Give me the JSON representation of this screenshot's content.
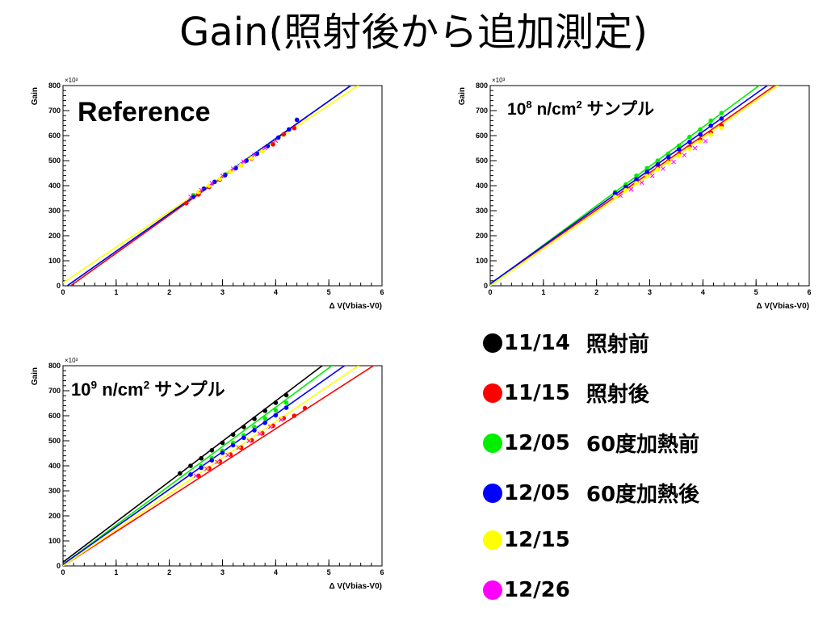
{
  "title": "Gain(照射後から追加測定)",
  "legend": [
    {
      "date": "11/14",
      "label": "照射前",
      "color": "#000000"
    },
    {
      "date": "11/15",
      "label": "照射後",
      "color": "#ff0000"
    },
    {
      "date": "12/05",
      "label": "60度加熱前",
      "color": "#00ee00"
    },
    {
      "date": "12/05",
      "label": "60度加熱後",
      "color": "#0000ff"
    },
    {
      "date": "12/15",
      "label": "",
      "color": "#ffff00"
    },
    {
      "date": "12/26",
      "label": "",
      "color": "#ff00ff"
    }
  ],
  "chart_data": [
    {
      "type": "scatter",
      "title": "",
      "annotation": "Reference",
      "xlabel": "Δ V(Vbias-V0)",
      "ylabel": "Gain",
      "y_multiplier_label": "×10³",
      "xlim": [
        0,
        6
      ],
      "ylim": [
        0,
        800
      ],
      "xticks": [
        0,
        1,
        2,
        3,
        4,
        5,
        6
      ],
      "yticks": [
        0,
        100,
        200,
        300,
        400,
        500,
        600,
        700,
        800
      ],
      "series": [
        {
          "color": "#000000",
          "x": [],
          "y": [],
          "fit": null
        },
        {
          "color": "#ff0000",
          "x": [
            2.32,
            2.55,
            2.75,
            2.95,
            3.15,
            3.35,
            3.55,
            3.75,
            3.95,
            4.15,
            4.35
          ],
          "y": [
            330,
            365,
            395,
            425,
            455,
            482,
            508,
            538,
            565,
            605,
            630
          ],
          "fit": {
            "slope": 152,
            "intercept": -22
          }
        },
        {
          "color": "#00ee00",
          "x": [
            2.45,
            2.65,
            2.85,
            3.05,
            3.25,
            3.45,
            3.65,
            3.85
          ],
          "y": [
            362,
            388,
            415,
            445,
            472,
            500,
            530,
            560
          ],
          "fit": {
            "slope": 150,
            "intercept": -12
          }
        },
        {
          "color": "#0000ff",
          "x": [
            2.45,
            2.65,
            2.85,
            3.05,
            3.25,
            3.45,
            3.65,
            3.85,
            4.05,
            4.25,
            4.4
          ],
          "y": [
            355,
            388,
            415,
            442,
            470,
            500,
            528,
            558,
            592,
            625,
            663
          ],
          "fit": {
            "slope": 150,
            "intercept": -12
          }
        },
        {
          "color": "#ffff00",
          "x": [
            2.55,
            2.75,
            2.95,
            3.15,
            3.35,
            3.55,
            3.75
          ],
          "y": [
            375,
            400,
            428,
            455,
            482,
            510,
            538
          ],
          "fit": {
            "slope": 142,
            "intercept": 12
          }
        },
        {
          "color": "#ff00ff",
          "x": [
            2.4,
            2.6,
            2.8,
            3.0,
            3.2,
            3.4,
            3.6,
            3.8,
            4.0
          ],
          "y": [
            355,
            382,
            410,
            440,
            468,
            496,
            523,
            550,
            580
          ],
          "fit": null
        }
      ]
    },
    {
      "type": "scatter",
      "title": "",
      "annotation": "10⁸ n/cm² サンプル",
      "xlabel": "Δ V(Vbias-V0)",
      "ylabel": "Gain",
      "y_multiplier_label": "×10³",
      "xlim": [
        0,
        6
      ],
      "ylim": [
        0,
        800
      ],
      "xticks": [
        0,
        1,
        2,
        3,
        4,
        5,
        6
      ],
      "yticks": [
        0,
        100,
        200,
        300,
        400,
        500,
        600,
        700,
        800
      ],
      "series": [
        {
          "color": "#000000",
          "x": [],
          "y": [],
          "fit": null
        },
        {
          "color": "#ff0000",
          "x": [
            2.35,
            2.55,
            2.75,
            2.95,
            3.15,
            3.35,
            3.55,
            3.75,
            3.95,
            4.15,
            4.35
          ],
          "y": [
            362,
            388,
            415,
            442,
            470,
            498,
            527,
            555,
            583,
            612,
            640
          ],
          "fit": {
            "slope": 148,
            "intercept": 8
          }
        },
        {
          "color": "#00ee00",
          "x": [
            2.35,
            2.55,
            2.75,
            2.95,
            3.15,
            3.35,
            3.55,
            3.75,
            3.95,
            4.15,
            4.35
          ],
          "y": [
            375,
            405,
            440,
            470,
            500,
            528,
            560,
            595,
            625,
            660,
            690
          ],
          "fit": {
            "slope": 157,
            "intercept": 6
          }
        },
        {
          "color": "#0000ff",
          "x": [
            2.35,
            2.55,
            2.75,
            2.95,
            3.15,
            3.35,
            3.55,
            3.75,
            3.95,
            4.15,
            4.35
          ],
          "y": [
            370,
            395,
            425,
            455,
            485,
            515,
            545,
            575,
            605,
            640,
            668
          ],
          "fit": {
            "slope": 152,
            "intercept": 8
          }
        },
        {
          "color": "#ffff00",
          "x": [
            2.35,
            2.55,
            2.75,
            2.95,
            3.15,
            3.35,
            3.55,
            3.75,
            3.95,
            4.15,
            4.35
          ],
          "y": [
            355,
            382,
            410,
            438,
            465,
            492,
            520,
            548,
            576,
            604,
            630
          ],
          "fit": {
            "slope": 148,
            "intercept": 0
          }
        },
        {
          "color": "#ff00ff",
          "x": [
            2.45,
            2.65,
            2.85,
            3.05,
            3.25,
            3.45,
            3.65,
            3.85,
            4.05
          ],
          "y": [
            360,
            385,
            412,
            440,
            468,
            495,
            522,
            550,
            578
          ],
          "fit": null
        }
      ]
    },
    {
      "type": "scatter",
      "title": "",
      "annotation": "10⁹ n/cm² サンプル",
      "xlabel": "Δ V(Vbias-V0)",
      "ylabel": "Gain",
      "y_multiplier_label": "×10³",
      "xlim": [
        0,
        6
      ],
      "ylim": [
        0,
        800
      ],
      "xticks": [
        0,
        1,
        2,
        3,
        4,
        5,
        6
      ],
      "yticks": [
        0,
        100,
        200,
        300,
        400,
        500,
        600,
        700,
        800
      ],
      "series": [
        {
          "color": "#000000",
          "x": [
            2.2,
            2.4,
            2.6,
            2.8,
            3.0,
            3.2,
            3.4,
            3.6,
            3.8,
            4.0,
            4.2
          ],
          "y": [
            370,
            400,
            430,
            462,
            492,
            525,
            555,
            588,
            620,
            652,
            682
          ],
          "fit": {
            "slope": 161,
            "intercept": 15
          }
        },
        {
          "color": "#ff0000",
          "x": [
            2.55,
            2.75,
            2.95,
            3.15,
            3.35,
            3.55,
            3.75,
            3.95,
            4.15,
            4.35,
            4.55
          ],
          "y": [
            360,
            390,
            418,
            445,
            473,
            502,
            530,
            560,
            590,
            600,
            630
          ],
          "fit": {
            "slope": 137,
            "intercept": 0
          }
        },
        {
          "color": "#00ee00",
          "x": [
            2.4,
            2.6,
            2.8,
            3.0,
            3.2,
            3.4,
            3.6,
            3.8,
            4.0,
            4.2
          ],
          "y": [
            365,
            398,
            430,
            460,
            492,
            522,
            555,
            590,
            622,
            652
          ],
          "fit": {
            "slope": 157,
            "intercept": 6
          }
        },
        {
          "color": "#0000ff",
          "x": [
            2.4,
            2.6,
            2.8,
            3.0,
            3.2,
            3.4,
            3.6,
            3.8,
            4.0,
            4.2
          ],
          "y": [
            365,
            392,
            422,
            452,
            482,
            512,
            542,
            572,
            602,
            632
          ],
          "fit": {
            "slope": 150,
            "intercept": 6
          }
        },
        {
          "color": "#ffff00",
          "x": [
            2.7,
            2.9,
            3.1,
            3.3,
            3.5,
            3.7,
            3.9,
            4.1
          ],
          "y": [
            390,
            418,
            446,
            475,
            503,
            532,
            560,
            590
          ],
          "fit": {
            "slope": 144,
            "intercept": 0
          }
        },
        {
          "color": "#ff00ff",
          "x": [
            2.5,
            2.7,
            2.9,
            3.1,
            3.3,
            3.5,
            3.7,
            3.9,
            4.1
          ],
          "y": [
            360,
            388,
            415,
            443,
            472,
            500,
            528,
            556,
            584
          ],
          "fit": null
        }
      ]
    }
  ]
}
